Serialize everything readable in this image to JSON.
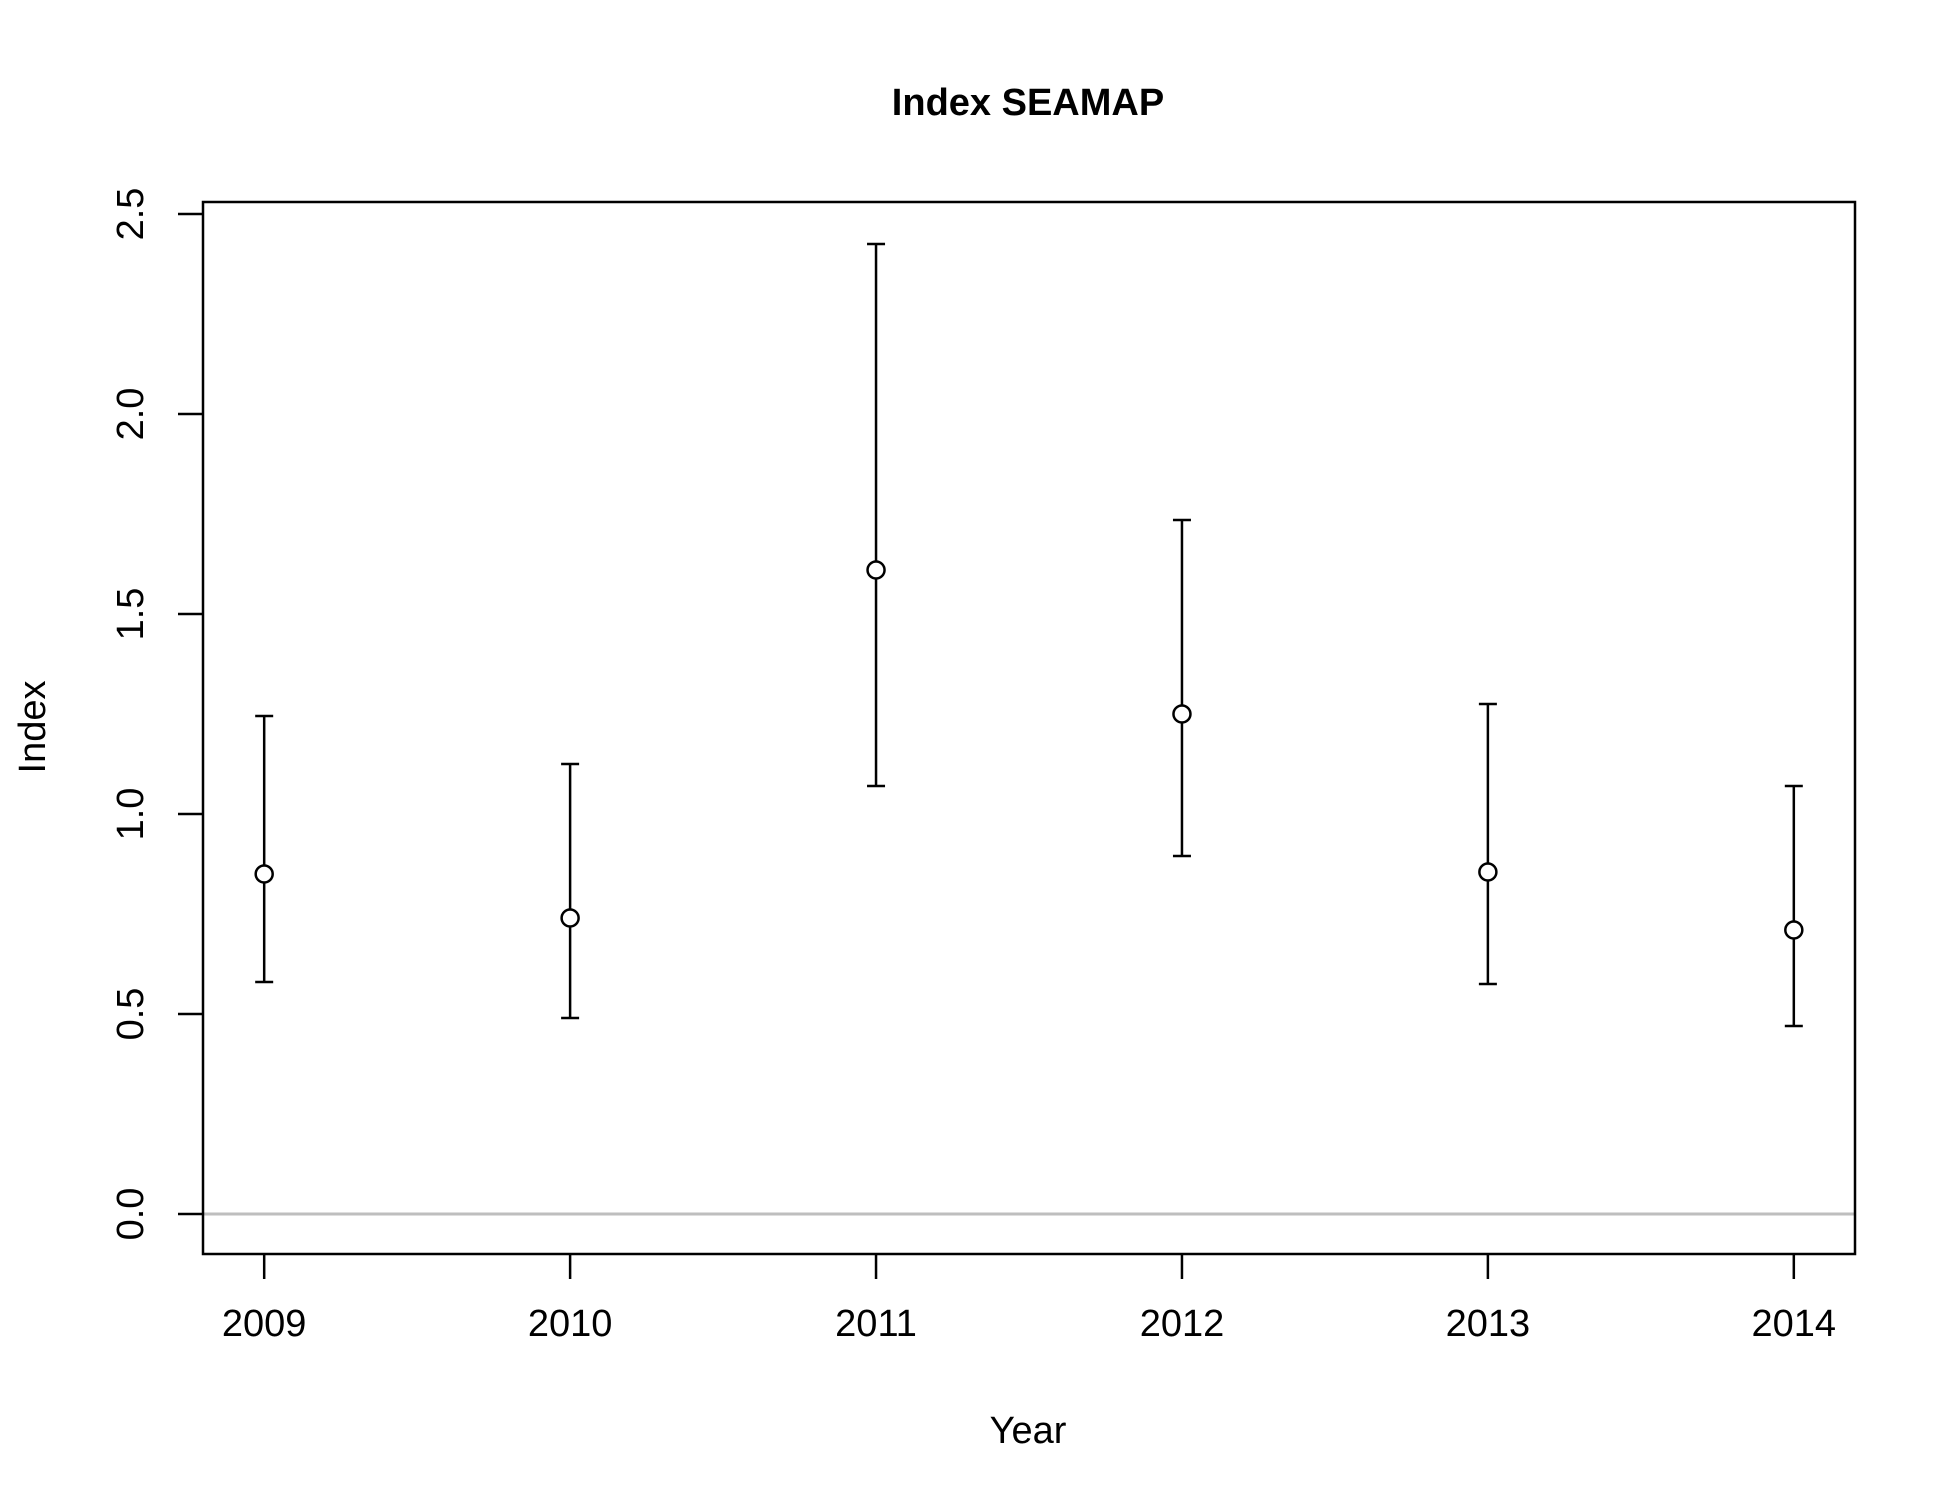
{
  "chart_data": {
    "type": "scatter",
    "title": "Index SEAMAP",
    "xlabel": "Year",
    "ylabel": "Index",
    "x": [
      2009,
      2010,
      2011,
      2012,
      2013,
      2014
    ],
    "x_tick_labels": [
      "2009",
      "2010",
      "2011",
      "2012",
      "2013",
      "2014"
    ],
    "y_tick_labels": [
      "0.0",
      "0.5",
      "1.0",
      "1.5",
      "2.0",
      "2.5"
    ],
    "y_ticks": [
      0,
      0.5,
      1.0,
      1.5,
      2.0,
      2.5
    ],
    "xlim": [
      2008.8,
      2014.2
    ],
    "ylim": [
      -0.1,
      2.53
    ],
    "series": [
      {
        "values": [
          0.85,
          0.74,
          1.61,
          1.25,
          0.855,
          0.71
        ],
        "lower": [
          0.58,
          0.49,
          1.07,
          0.895,
          0.575,
          0.47
        ],
        "upper": [
          1.245,
          1.125,
          2.425,
          1.735,
          1.275,
          1.07
        ]
      }
    ],
    "reference_line": {
      "y": 0,
      "color": "#bebebe"
    },
    "grid": false,
    "legend": "none",
    "colors": {
      "points": "#000000",
      "axes": "#000000"
    }
  }
}
